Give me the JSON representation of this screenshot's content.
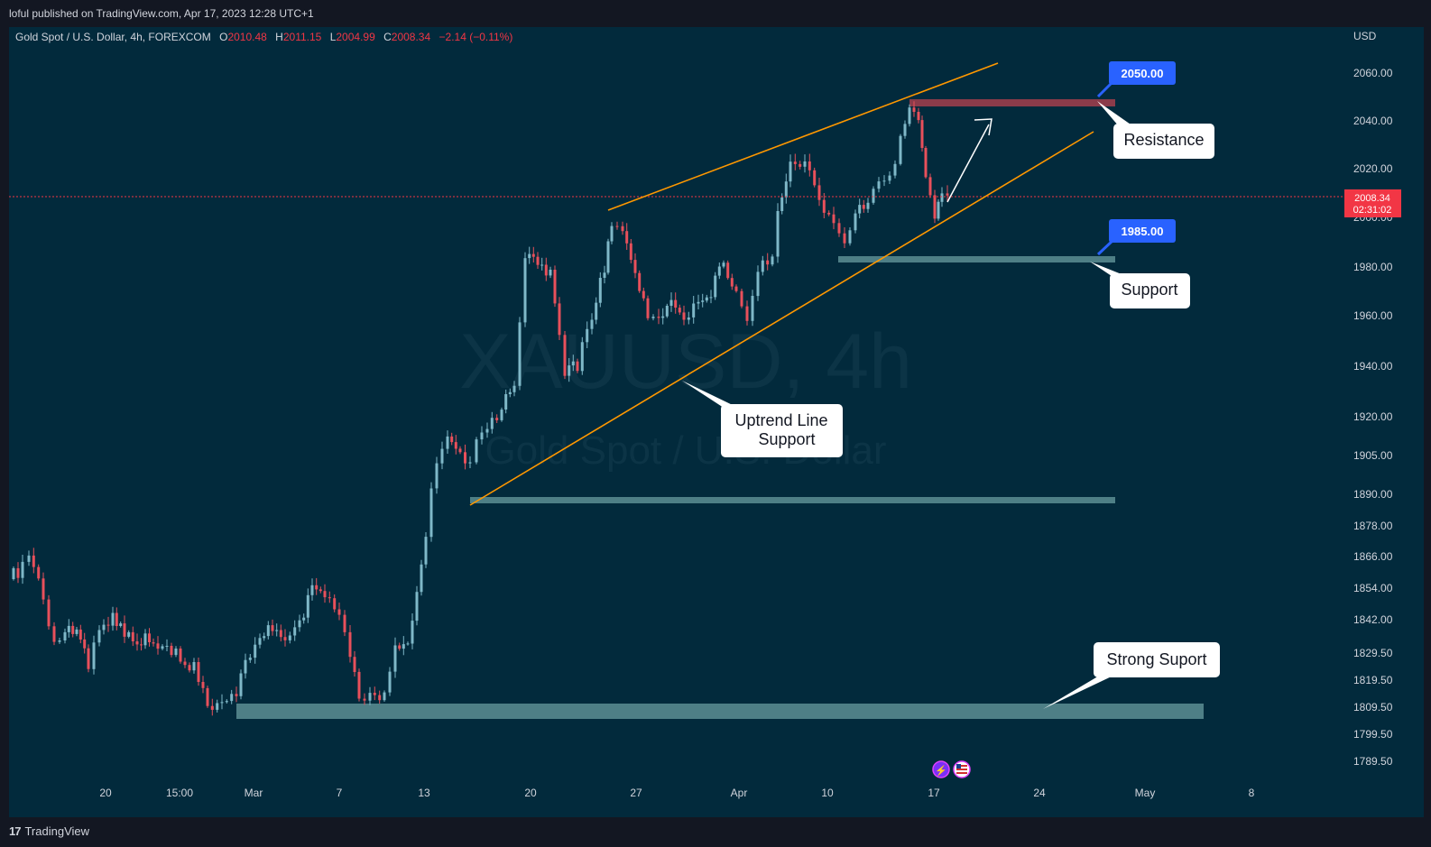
{
  "header": {
    "published": "loful published on TradingView.com, Apr 17, 2023 12:28 UTC+1"
  },
  "legend": {
    "symbol": "Gold Spot / U.S. Dollar, 4h, FOREXCOM",
    "o_label": "O",
    "o_value": "2010.48",
    "h_label": "H",
    "h_value": "2011.15",
    "l_label": "L",
    "l_value": "2004.99",
    "c_label": "C",
    "c_value": "2008.34",
    "change": "−2.14 (−0.11%)"
  },
  "watermark": {
    "ticker": "XAUUSD, 4h",
    "name": "Gold Spot / U.S. Dollar"
  },
  "price_axis": {
    "currency": "USD",
    "ticks": [
      "2060.00",
      "2040.00",
      "2020.00",
      "2000.00",
      "1980.00",
      "1960.00",
      "1940.00",
      "1920.00",
      "1905.00",
      "1890.00",
      "1878.00",
      "1866.00",
      "1854.00",
      "1842.00",
      "1829.50",
      "1819.50",
      "1809.50",
      "1799.50",
      "1789.50"
    ],
    "current_price": "2008.34",
    "countdown": "02:31:02"
  },
  "time_axis": {
    "ticks": [
      "20",
      "15:00",
      "Mar",
      "7",
      "13",
      "20",
      "27",
      "Apr",
      "10",
      "17",
      "24",
      "May",
      "8"
    ]
  },
  "annotations": {
    "resistance_price": "2050.00",
    "support_price": "1985.00",
    "resistance_label": "Resistance",
    "support_label": "Support",
    "uptrend_line1": "Uptrend Line",
    "uptrend_line2": "Support",
    "strong_support_label": "Strong Suport"
  },
  "footer": {
    "brand": "TradingView"
  },
  "colors": {
    "background": "#022a3c",
    "bull": "#7fb8c8",
    "bear": "#e8505b",
    "trendline": "#ff9800",
    "resistance_zone": "#8b3b4a",
    "support_zone": "#4e7f86",
    "price_tag": "#2962ff",
    "current_price_tag": "#f23645"
  }
}
